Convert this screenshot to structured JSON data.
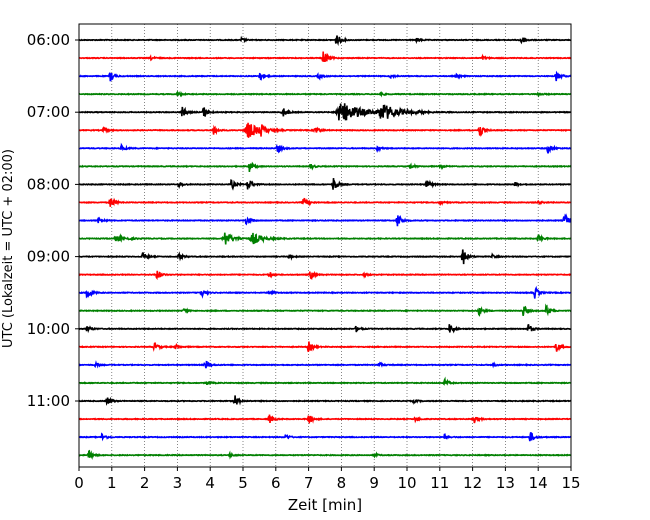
{
  "chart_data": {
    "type": "line",
    "title": "",
    "xlabel": "Zeit  [min]",
    "ylabel": "UTC (Lokalzeit = UTC + 02:00)",
    "xlim": [
      0,
      15
    ],
    "x_ticks": [
      "0",
      "1",
      "2",
      "3",
      "4",
      "5",
      "6",
      "7",
      "8",
      "9",
      "10",
      "11",
      "12",
      "13",
      "14",
      "15"
    ],
    "y_ticks": [
      "06:00",
      "07:00",
      "08:00",
      "09:00",
      "10:00",
      "11:00"
    ],
    "grid": "vertical dotted lines at each minute",
    "colors": [
      "#000000",
      "#ff0000",
      "#0000ff",
      "#008000"
    ],
    "traces_count": 24,
    "traces": [
      {
        "start": "06:00",
        "color": "#000000",
        "events": [
          {
            "t": 7.85,
            "a": 1.1
          },
          {
            "t": 13.45,
            "a": 1.0
          },
          {
            "t": 10.3,
            "a": 0.35
          },
          {
            "t": 4.95,
            "a": 0.3
          }
        ]
      },
      {
        "start": "06:15",
        "color": "#ff0000",
        "events": [
          {
            "t": 7.45,
            "a": 1.5
          },
          {
            "t": 2.2,
            "a": 0.3
          },
          {
            "t": 12.3,
            "a": 0.3
          }
        ]
      },
      {
        "start": "06:30",
        "color": "#0000ff",
        "events": [
          {
            "t": 0.95,
            "a": 0.9
          },
          {
            "t": 5.5,
            "a": 0.9
          },
          {
            "t": 7.3,
            "a": 0.5
          },
          {
            "t": 14.55,
            "a": 0.9
          },
          {
            "t": 9.5,
            "a": 0.3
          },
          {
            "t": 11.5,
            "a": 0.3
          }
        ]
      },
      {
        "start": "06:45",
        "color": "#008000",
        "events": [
          {
            "t": 3.0,
            "a": 0.3
          },
          {
            "t": 9.2,
            "a": 0.3
          },
          {
            "t": 14.0,
            "a": 0.3
          }
        ]
      },
      {
        "start": "07:00",
        "color": "#000000",
        "events": [
          {
            "t": 3.15,
            "a": 1.0
          },
          {
            "t": 3.8,
            "a": 1.0
          },
          {
            "t": 6.2,
            "a": 1.0
          },
          {
            "t": 8.0,
            "a": 1.9,
            "w": 0.5
          },
          {
            "t": 9.25,
            "a": 1.4,
            "w": 0.4
          },
          {
            "t": 10.3,
            "a": 0.3
          }
        ]
      },
      {
        "start": "07:15",
        "color": "#ff0000",
        "events": [
          {
            "t": 0.75,
            "a": 0.4
          },
          {
            "t": 4.1,
            "a": 0.8
          },
          {
            "t": 5.15,
            "a": 1.4,
            "w": 0.3
          },
          {
            "t": 5.55,
            "a": 0.8
          },
          {
            "t": 7.2,
            "a": 0.9
          },
          {
            "t": 12.2,
            "a": 1.6
          }
        ]
      },
      {
        "start": "07:30",
        "color": "#0000ff",
        "events": [
          {
            "t": 1.3,
            "a": 0.5
          },
          {
            "t": 6.05,
            "a": 0.9
          },
          {
            "t": 9.1,
            "a": 0.4
          },
          {
            "t": 14.3,
            "a": 0.9
          }
        ]
      },
      {
        "start": "07:45",
        "color": "#008000",
        "events": [
          {
            "t": 5.2,
            "a": 1.1
          },
          {
            "t": 7.05,
            "a": 0.5
          },
          {
            "t": 10.1,
            "a": 0.4
          },
          {
            "t": 11.0,
            "a": 0.3
          }
        ]
      },
      {
        "start": "08:00",
        "color": "#000000",
        "events": [
          {
            "t": 3.05,
            "a": 0.4
          },
          {
            "t": 4.65,
            "a": 0.9
          },
          {
            "t": 5.15,
            "a": 1.2
          },
          {
            "t": 7.75,
            "a": 1.3
          },
          {
            "t": 10.6,
            "a": 1.0
          },
          {
            "t": 13.3,
            "a": 0.4
          }
        ]
      },
      {
        "start": "08:15",
        "color": "#ff0000",
        "events": [
          {
            "t": 0.95,
            "a": 1.1
          },
          {
            "t": 6.85,
            "a": 0.9
          },
          {
            "t": 11.0,
            "a": 0.3
          },
          {
            "t": 14.0,
            "a": 0.3
          }
        ]
      },
      {
        "start": "08:30",
        "color": "#0000ff",
        "events": [
          {
            "t": 0.6,
            "a": 0.6
          },
          {
            "t": 5.1,
            "a": 0.8
          },
          {
            "t": 9.7,
            "a": 1.5
          },
          {
            "t": 14.8,
            "a": 1.4
          }
        ]
      },
      {
        "start": "08:45",
        "color": "#008000",
        "events": [
          {
            "t": 1.15,
            "a": 0.5,
            "w": 0.25
          },
          {
            "t": 4.45,
            "a": 1.3,
            "w": 0.2
          },
          {
            "t": 5.3,
            "a": 1.0,
            "w": 0.25
          },
          {
            "t": 14.0,
            "a": 0.7
          }
        ]
      },
      {
        "start": "09:00",
        "color": "#000000",
        "events": [
          {
            "t": 1.95,
            "a": 0.7
          },
          {
            "t": 3.05,
            "a": 0.6
          },
          {
            "t": 6.4,
            "a": 0.3
          },
          {
            "t": 11.7,
            "a": 1.7
          },
          {
            "t": 12.6,
            "a": 0.3
          }
        ]
      },
      {
        "start": "09:15",
        "color": "#ff0000",
        "events": [
          {
            "t": 2.35,
            "a": 1.0
          },
          {
            "t": 5.8,
            "a": 0.6
          },
          {
            "t": 7.05,
            "a": 0.9
          },
          {
            "t": 8.7,
            "a": 0.3
          }
        ]
      },
      {
        "start": "09:30",
        "color": "#0000ff",
        "events": [
          {
            "t": 0.25,
            "a": 1.2
          },
          {
            "t": 3.7,
            "a": 0.9
          },
          {
            "t": 5.8,
            "a": 0.5
          },
          {
            "t": 13.9,
            "a": 1.0
          }
        ]
      },
      {
        "start": "09:45",
        "color": "#008000",
        "events": [
          {
            "t": 3.2,
            "a": 0.3
          },
          {
            "t": 12.2,
            "a": 0.7
          },
          {
            "t": 13.55,
            "a": 1.1
          },
          {
            "t": 14.25,
            "a": 1.0
          }
        ]
      },
      {
        "start": "10:00",
        "color": "#000000",
        "events": [
          {
            "t": 0.25,
            "a": 0.6
          },
          {
            "t": 8.45,
            "a": 0.5
          },
          {
            "t": 11.3,
            "a": 0.9
          },
          {
            "t": 13.7,
            "a": 0.9
          }
        ]
      },
      {
        "start": "10:15",
        "color": "#ff0000",
        "events": [
          {
            "t": 2.3,
            "a": 0.7
          },
          {
            "t": 2.95,
            "a": 0.4
          },
          {
            "t": 7.0,
            "a": 1.0
          },
          {
            "t": 14.55,
            "a": 0.9
          }
        ]
      },
      {
        "start": "10:30",
        "color": "#0000ff",
        "events": [
          {
            "t": 0.5,
            "a": 0.3
          },
          {
            "t": 3.85,
            "a": 0.9
          },
          {
            "t": 9.15,
            "a": 0.4
          },
          {
            "t": 12.6,
            "a": 0.3
          }
        ]
      },
      {
        "start": "10:45",
        "color": "#008000",
        "events": [
          {
            "t": 3.9,
            "a": 0.3
          },
          {
            "t": 11.15,
            "a": 0.6
          }
        ]
      },
      {
        "start": "11:00",
        "color": "#000000",
        "events": [
          {
            "t": 0.85,
            "a": 0.8
          },
          {
            "t": 4.75,
            "a": 1.1
          },
          {
            "t": 10.2,
            "a": 0.3
          }
        ]
      },
      {
        "start": "11:15",
        "color": "#ff0000",
        "events": [
          {
            "t": 5.8,
            "a": 0.8
          },
          {
            "t": 7.0,
            "a": 0.9
          },
          {
            "t": 10.25,
            "a": 0.4
          },
          {
            "t": 12.05,
            "a": 0.7
          }
        ]
      },
      {
        "start": "11:30",
        "color": "#0000ff",
        "events": [
          {
            "t": 0.7,
            "a": 0.6
          },
          {
            "t": 6.3,
            "a": 0.4
          },
          {
            "t": 11.15,
            "a": 0.5
          },
          {
            "t": 13.75,
            "a": 1.0
          }
        ]
      },
      {
        "start": "11:45",
        "color": "#008000",
        "events": [
          {
            "t": 0.3,
            "a": 0.8
          },
          {
            "t": 4.6,
            "a": 0.3
          },
          {
            "t": 9.0,
            "a": 0.3
          }
        ]
      }
    ]
  }
}
